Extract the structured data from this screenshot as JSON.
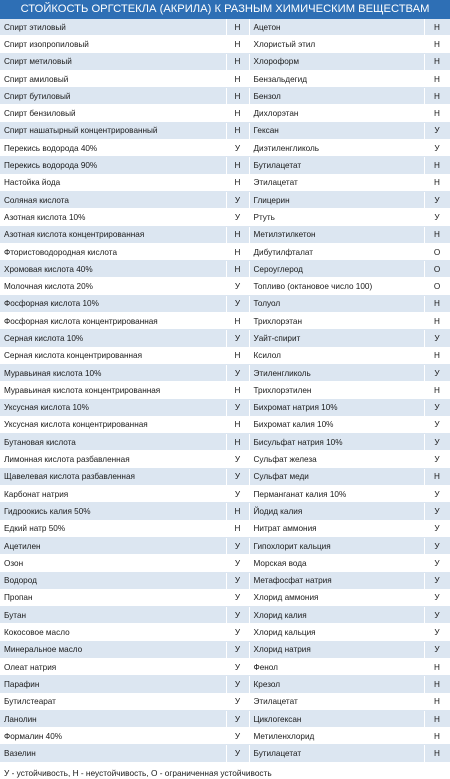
{
  "title": "СТОЙКОСТЬ ОРГСТЕКЛА (АКРИЛА) К РАЗНЫМ ХИМИЧЕСКИМ ВЕЩЕСТВАМ",
  "rows": [
    {
      "left_name": "Спирт этиловый",
      "left_mark": "Н",
      "right_name": "Ацетон",
      "right_mark": "Н"
    },
    {
      "left_name": "Спирт изопропиловый",
      "left_mark": "Н",
      "right_name": "Хлористый этил",
      "right_mark": "Н"
    },
    {
      "left_name": "Спирт метиловый",
      "left_mark": "Н",
      "right_name": "Хлороформ",
      "right_mark": "Н"
    },
    {
      "left_name": "Спирт амиловый",
      "left_mark": "Н",
      "right_name": "Бензальдегид",
      "right_mark": "Н"
    },
    {
      "left_name": "Спирт бутиловый",
      "left_mark": "Н",
      "right_name": "Бензол",
      "right_mark": "Н"
    },
    {
      "left_name": "Спирт бензиловый",
      "left_mark": "Н",
      "right_name": "Дихлорэтан",
      "right_mark": "Н"
    },
    {
      "left_name": "Спирт нашатырный концентрированный",
      "left_mark": "Н",
      "right_name": "Гексан",
      "right_mark": "У"
    },
    {
      "left_name": "Перекись водорода 40%",
      "left_mark": "У",
      "right_name": "Диэтиленгликоль",
      "right_mark": "У"
    },
    {
      "left_name": "Перекись водорода 90%",
      "left_mark": "Н",
      "right_name": "Бутилацетат",
      "right_mark": "Н"
    },
    {
      "left_name": "Настойка йода",
      "left_mark": "Н",
      "right_name": "Этилацетат",
      "right_mark": "Н"
    },
    {
      "left_name": "Соляная кислота",
      "left_mark": "У",
      "right_name": "Глицерин",
      "right_mark": "У"
    },
    {
      "left_name": "Азотная кислота 10%",
      "left_mark": "У",
      "right_name": "Ртуть",
      "right_mark": "У"
    },
    {
      "left_name": "Азотная кислота концентрированная",
      "left_mark": "Н",
      "right_name": "Метилэтилкетон",
      "right_mark": "Н"
    },
    {
      "left_name": "Фтористоводородная кислота",
      "left_mark": "Н",
      "right_name": "Дибутилфталат",
      "right_mark": "О"
    },
    {
      "left_name": "Хромовая кислота 40%",
      "left_mark": "Н",
      "right_name": "Сероуглерод",
      "right_mark": "О"
    },
    {
      "left_name": "Молочная кислота 20%",
      "left_mark": "У",
      "right_name": "Топливо (октановое число 100)",
      "right_mark": "О"
    },
    {
      "left_name": "Фосфорная кислота 10%",
      "left_mark": "У",
      "right_name": "Толуол",
      "right_mark": "Н"
    },
    {
      "left_name": "Фосфорная кислота концентрированная",
      "left_mark": "Н",
      "right_name": "Трихлорэтан",
      "right_mark": "Н"
    },
    {
      "left_name": "Серная кислота 10%",
      "left_mark": "У",
      "right_name": "Уайт-спирит",
      "right_mark": "У"
    },
    {
      "left_name": "Серная кислота концентрированная",
      "left_mark": "Н",
      "right_name": "Ксилол",
      "right_mark": "Н"
    },
    {
      "left_name": "Муравьиная кислота 10%",
      "left_mark": "У",
      "right_name": "Этиленгликоль",
      "right_mark": "У"
    },
    {
      "left_name": "Муравьиная кислота концентрированная",
      "left_mark": "Н",
      "right_name": "Трихлорэтилен",
      "right_mark": "Н"
    },
    {
      "left_name": "Уксусная кислота 10%",
      "left_mark": "У",
      "right_name": "Бихромат натрия 10%",
      "right_mark": "У"
    },
    {
      "left_name": "Уксусная кислота концентрированная",
      "left_mark": "Н",
      "right_name": "Бихромат калия 10%",
      "right_mark": "У"
    },
    {
      "left_name": "Бутановая кислота",
      "left_mark": "Н",
      "right_name": "Бисульфат натрия 10%",
      "right_mark": "У"
    },
    {
      "left_name": "Лимонная кислота разбавленная",
      "left_mark": "У",
      "right_name": "Сульфат железа",
      "right_mark": "У"
    },
    {
      "left_name": "Щавелевая кислота разбавленная",
      "left_mark": "У",
      "right_name": "Сульфат меди",
      "right_mark": "Н"
    },
    {
      "left_name": "Карбонат натрия",
      "left_mark": "У",
      "right_name": "Перманганат калия 10%",
      "right_mark": "У"
    },
    {
      "left_name": "Гидроокись калия 50%",
      "left_mark": "Н",
      "right_name": "Йодид калия",
      "right_mark": "У"
    },
    {
      "left_name": "Едкий натр 50%",
      "left_mark": "Н",
      "right_name": "Нитрат аммония",
      "right_mark": "У"
    },
    {
      "left_name": "Ацетилен",
      "left_mark": "У",
      "right_name": "Гипохлорит кальция",
      "right_mark": "У"
    },
    {
      "left_name": "Озон",
      "left_mark": "У",
      "right_name": "Морская вода",
      "right_mark": "У"
    },
    {
      "left_name": "Водород",
      "left_mark": "У",
      "right_name": "Метафосфат натрия",
      "right_mark": "У"
    },
    {
      "left_name": "Пропан",
      "left_mark": "У",
      "right_name": "Хлорид аммония",
      "right_mark": "У"
    },
    {
      "left_name": "Бутан",
      "left_mark": "У",
      "right_name": "Хлорид калия",
      "right_mark": "У"
    },
    {
      "left_name": "Кокосовое масло",
      "left_mark": "У",
      "right_name": "Хлорид кальция",
      "right_mark": "У"
    },
    {
      "left_name": "Минеральное масло",
      "left_mark": "У",
      "right_name": "Хлорид натрия",
      "right_mark": "У"
    },
    {
      "left_name": "Олеат натрия",
      "left_mark": "У",
      "right_name": "Фенол",
      "right_mark": "Н"
    },
    {
      "left_name": "Парафин",
      "left_mark": "У",
      "right_name": "Крезол",
      "right_mark": "Н"
    },
    {
      "left_name": "Бутилстеарат",
      "left_mark": "У",
      "right_name": "Этилацетат",
      "right_mark": "Н"
    },
    {
      "left_name": "Ланолин",
      "left_mark": "У",
      "right_name": "Циклогексан",
      "right_mark": "Н"
    },
    {
      "left_name": "Формалин 40%",
      "left_mark": "У",
      "right_name": "Метиленхлорид",
      "right_mark": "Н"
    },
    {
      "left_name": "Вазелин",
      "left_mark": "У",
      "right_name": "Бутилацетат",
      "right_mark": "Н"
    }
  ],
  "legend": "У - устойчивость, Н - неустойчивость, О - ограниченная устойчивость",
  "colors": {
    "header_bg": "#2e6fb5",
    "stripe_bg": "#dce6f1"
  }
}
